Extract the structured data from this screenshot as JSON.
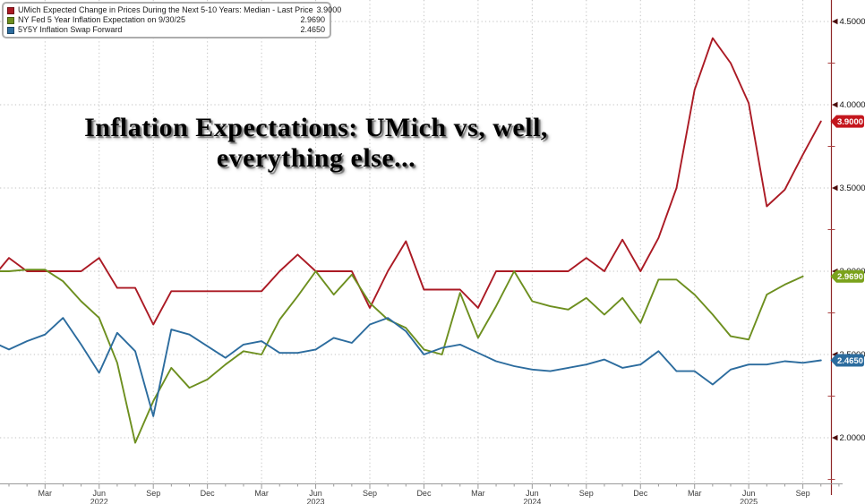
{
  "chart_data": {
    "type": "line",
    "title_lines": [
      "Inflation Expectations: UMich vs, well,",
      "everything else..."
    ],
    "ylim": [
      1.726,
      4.629
    ],
    "grid": "dotted",
    "legend_position": "top-left",
    "x": [
      "2021-12",
      "2022-01",
      "2022-02",
      "2022-03",
      "2022-04",
      "2022-05",
      "2022-06",
      "2022-07",
      "2022-08",
      "2022-09",
      "2022-10",
      "2022-11",
      "2022-12",
      "2023-01",
      "2023-02",
      "2023-03",
      "2023-04",
      "2023-05",
      "2023-06",
      "2023-07",
      "2023-08",
      "2023-09",
      "2023-10",
      "2023-11",
      "2023-12",
      "2024-01",
      "2024-02",
      "2024-03",
      "2024-04",
      "2024-05",
      "2024-06",
      "2024-07",
      "2024-08",
      "2024-09",
      "2024-10",
      "2024-11",
      "2024-12",
      "2025-01",
      "2025-02",
      "2025-03",
      "2025-04",
      "2025-05",
      "2025-06",
      "2025-07",
      "2025-08",
      "2025-09",
      "2025-10"
    ],
    "series": [
      {
        "name": "UMich Expected Change in Prices During the Next 5-10 Years: Median - Last Price",
        "last_label": "3.9000",
        "color": "#ab1a24",
        "badge_color": "#c4161d",
        "values": [
          2.95,
          3.08,
          3.0,
          3.0,
          3.0,
          3.0,
          3.08,
          2.9,
          2.9,
          2.68,
          2.88,
          2.88,
          2.88,
          2.88,
          2.88,
          2.88,
          3.0,
          3.1,
          3.0,
          3.0,
          3.0,
          2.78,
          3.0,
          3.18,
          2.89,
          2.89,
          2.89,
          2.78,
          3.0,
          3.0,
          3.0,
          3.0,
          3.0,
          3.08,
          3.0,
          3.19,
          3.0,
          3.2,
          3.5,
          4.09,
          4.4,
          4.25,
          4.01,
          3.39,
          3.49,
          3.7,
          3.9
        ]
      },
      {
        "name": "NY Fed 5 Year Inflation Expectation on 9/30/25",
        "last_label": "2.9690",
        "color": "#6d8f1f",
        "badge_color": "#7ba21c",
        "values": [
          3.0,
          3.0,
          3.01,
          3.01,
          2.94,
          2.82,
          2.72,
          2.45,
          1.97,
          2.22,
          2.42,
          2.3,
          2.35,
          2.44,
          2.52,
          2.5,
          2.71,
          2.85,
          3.0,
          2.86,
          2.98,
          2.81,
          2.71,
          2.66,
          2.53,
          2.5,
          2.87,
          2.6,
          2.79,
          3.0,
          2.82,
          2.79,
          2.77,
          2.84,
          2.74,
          2.84,
          2.69,
          2.95,
          2.95,
          2.86,
          2.74,
          2.61,
          2.59,
          2.86,
          2.92,
          2.969,
          null
        ]
      },
      {
        "name": "5Y5Y Inflation Swap Forward",
        "last_label": "2.4650",
        "color": "#2c6c9e",
        "badge_color": "#2c6c9e",
        "values": [
          2.58,
          2.53,
          2.58,
          2.62,
          2.72,
          2.56,
          2.39,
          2.63,
          2.52,
          2.13,
          2.65,
          2.62,
          2.55,
          2.48,
          2.56,
          2.58,
          2.51,
          2.51,
          2.53,
          2.6,
          2.57,
          2.68,
          2.72,
          2.64,
          2.5,
          2.54,
          2.56,
          2.51,
          2.46,
          2.43,
          2.41,
          2.4,
          2.42,
          2.44,
          2.47,
          2.42,
          2.44,
          2.52,
          2.4,
          2.4,
          2.32,
          2.41,
          2.44,
          2.44,
          2.46,
          2.45,
          2.465
        ]
      }
    ],
    "y_ticks": [
      {
        "v": 2.0,
        "label": "2.0000"
      },
      {
        "v": 2.5,
        "label": "2.5000"
      },
      {
        "v": 3.0,
        "label": "3.0000"
      },
      {
        "v": 3.5,
        "label": "3.5000"
      },
      {
        "v": 4.0,
        "label": "4.0000"
      },
      {
        "v": 4.5,
        "label": "4.5000"
      }
    ],
    "y_minor_step": 0.25,
    "x_ticks": [
      {
        "m": "2022-03",
        "label": "Mar"
      },
      {
        "m": "2022-06",
        "label": "Jun",
        "year": "2022"
      },
      {
        "m": "2022-09",
        "label": "Sep"
      },
      {
        "m": "2022-12",
        "label": "Dec"
      },
      {
        "m": "2023-03",
        "label": "Mar"
      },
      {
        "m": "2023-06",
        "label": "Jun",
        "year": "2023"
      },
      {
        "m": "2023-09",
        "label": "Sep"
      },
      {
        "m": "2023-12",
        "label": "Dec"
      },
      {
        "m": "2024-03",
        "label": "Mar"
      },
      {
        "m": "2024-06",
        "label": "Jun",
        "year": "2024"
      },
      {
        "m": "2024-09",
        "label": "Sep"
      },
      {
        "m": "2024-12",
        "label": "Dec"
      },
      {
        "m": "2025-03",
        "label": "Mar"
      },
      {
        "m": "2025-06",
        "label": "Jun",
        "year": "2025"
      },
      {
        "m": "2025-09",
        "label": "Sep"
      }
    ]
  }
}
